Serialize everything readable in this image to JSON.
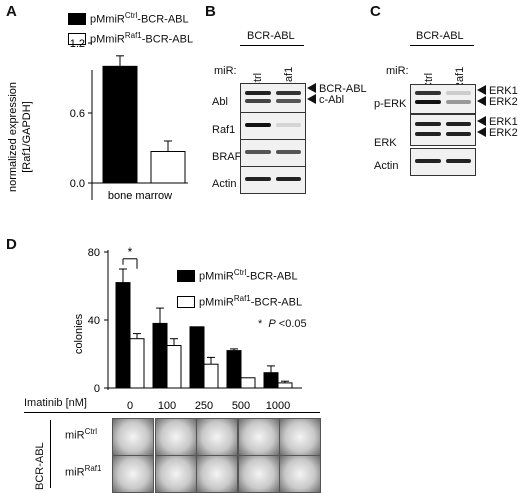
{
  "panels": {
    "A": "A",
    "B": "B",
    "C": "C",
    "D": "D"
  },
  "panelA": {
    "legend": [
      {
        "prefix": "pMmiR",
        "sup": "Ctrl",
        "suffix": "-BCR-ABL",
        "color": "#000000"
      },
      {
        "prefix": "pMmiR",
        "sup": "Raf1",
        "suffix": "-BCR-ABL",
        "color": "#ffffff"
      }
    ],
    "ylabel1": "normalized expression",
    "ylabel2": "[Raf1/GAPDH]",
    "yticks": [
      "0.0",
      "0.6",
      "1.2"
    ],
    "xlabel": "bone marrow"
  },
  "chart_data": [
    {
      "type": "bar",
      "categories": [
        "bone marrow"
      ],
      "series": [
        {
          "name": "pMmiRCtrl-BCR-ABL",
          "values": [
            1.0
          ],
          "errors": [
            0.09
          ]
        },
        {
          "name": "pMmiRRaf1-BCR-ABL",
          "values": [
            0.27
          ],
          "errors": [
            0.09
          ]
        }
      ],
      "ylabel": "normalized expression [Raf1/GAPDH]",
      "ylim": [
        0,
        1.2
      ]
    },
    {
      "type": "bar",
      "categories": [
        "0",
        "100",
        "250",
        "500",
        "1000"
      ],
      "series": [
        {
          "name": "pMmiRCtrl-BCR-ABL",
          "values": [
            62,
            38,
            36,
            22,
            9
          ],
          "errors": [
            8,
            9,
            0,
            1,
            4
          ]
        },
        {
          "name": "pMmiRRaf1-BCR-ABL",
          "values": [
            29,
            25,
            14,
            6,
            3
          ],
          "errors": [
            3,
            4,
            4,
            0,
            1
          ]
        }
      ],
      "ylabel": "colonies",
      "xlabel": "Imatinib [nM]",
      "ylim": [
        0,
        80
      ],
      "significance": {
        "category": "0",
        "label": "*"
      }
    }
  ],
  "panelB": {
    "header": "BCR-ABL",
    "mir_label": "miR:",
    "lanes": [
      "Ctrl",
      "Raf1"
    ],
    "rows": [
      "Abl",
      "Raf1",
      "BRAF",
      "Actin"
    ],
    "arrows": [
      "BCR-ABL",
      "c-Abl"
    ]
  },
  "panelC": {
    "header": "BCR-ABL",
    "mir_label": "miR:",
    "lanes": [
      "Ctrl",
      "Raf1"
    ],
    "rows": [
      "p-ERK",
      "ERK",
      "Actin"
    ],
    "arrows_perk": [
      "ERK1",
      "ERK2"
    ],
    "arrows_erk": [
      "ERK1",
      "ERK2"
    ]
  },
  "panelD": {
    "legend": [
      {
        "prefix": "pMmiR",
        "sup": "Ctrl",
        "suffix": "-BCR-ABL",
        "color": "#000000"
      },
      {
        "prefix": "pMmiR",
        "sup": "Raf1",
        "suffix": "-BCR-ABL",
        "color": "#ffffff"
      }
    ],
    "sig_note_star": "*",
    "sig_note_p": "P",
    "sig_note_rest": " <0.05",
    "ylabel": "colonies",
    "yticks": [
      "0",
      "40",
      "80"
    ],
    "xlabel": "Imatinib [nM]",
    "doses": [
      "0",
      "100",
      "250",
      "500",
      "1000"
    ],
    "side_label": "BCR-ABL",
    "rows": [
      {
        "prefix": "miR",
        "sup": "Ctrl"
      },
      {
        "prefix": "miR",
        "sup": "Raf1"
      }
    ]
  }
}
